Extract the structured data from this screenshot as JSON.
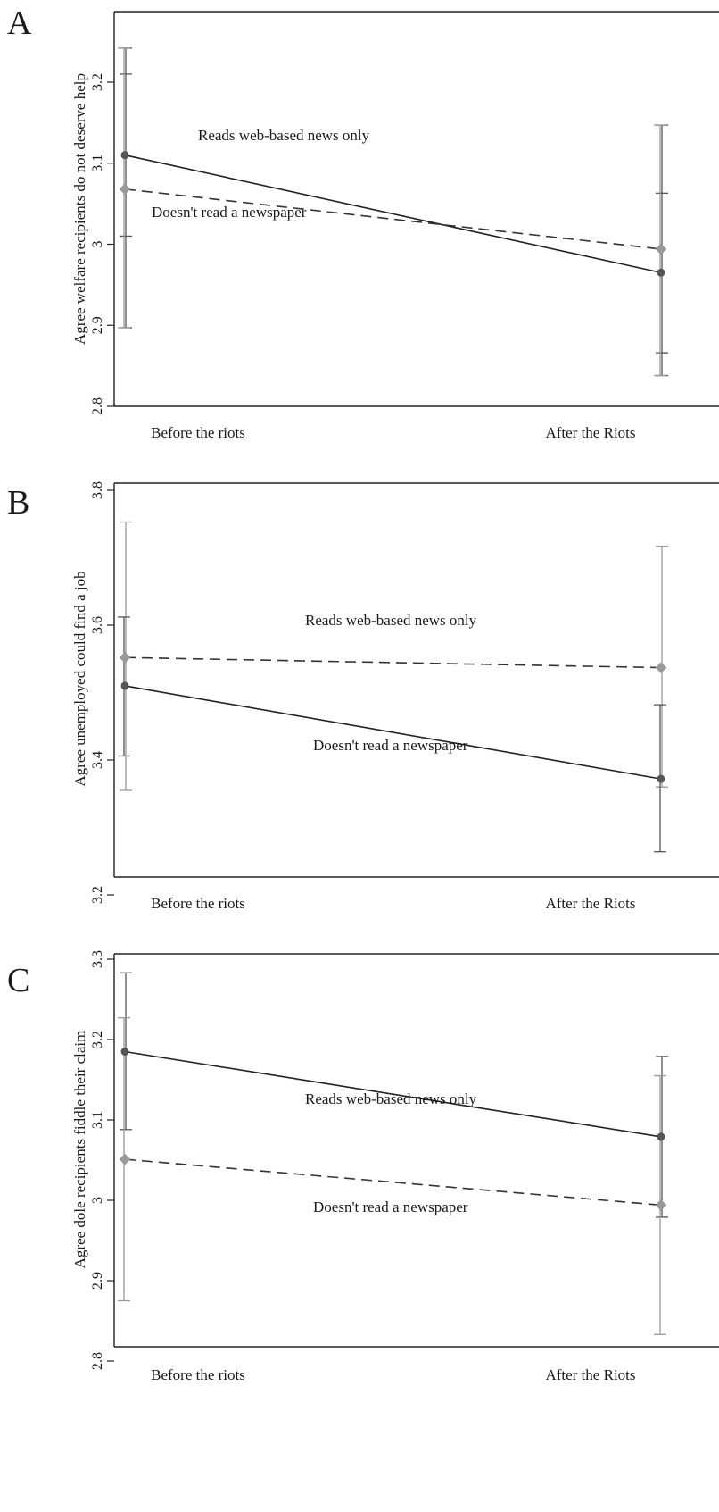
{
  "chart_data": [
    {
      "type": "line",
      "panel_label": "A",
      "categories": [
        "Before the riots",
        "After the Riots"
      ],
      "ylabel": "Agree welfare recipients do not deserve help",
      "ylim": [
        2.8,
        3.22
      ],
      "yticks": [
        2.8,
        2.9,
        3,
        3.1,
        3.2
      ],
      "ytick_labels": [
        "2.8",
        "2.9",
        "3",
        "3.1",
        "3.2"
      ],
      "series": [
        {
          "name": "Reads web-based news only",
          "style": "solid",
          "color": "#555555",
          "values": [
            3.11,
            2.965
          ],
          "ci_lower": [
            2.897,
            2.838
          ],
          "ci_upper": [
            3.242,
            3.147
          ],
          "inner_lower": [
            3.01,
            2.866
          ],
          "inner_upper": [
            3.21,
            3.063
          ]
        },
        {
          "name": "Doesn't read a newspaper",
          "style": "dashed",
          "color": "#999999",
          "values": [
            3.068,
            2.994
          ],
          "ci_lower": [
            2.897,
            2.838
          ],
          "ci_upper": [
            3.242,
            3.147
          ]
        }
      ],
      "annotations": [
        {
          "text": "Reads web-based news only"
        },
        {
          "text": "Doesn't read a newspaper"
        }
      ]
    },
    {
      "type": "line",
      "panel_label": "B",
      "categories": [
        "Before the riots",
        "After the Riots"
      ],
      "ylabel": "Agree unemployed could find a job",
      "ylim": [
        3.2,
        3.8
      ],
      "yticks": [
        3.2,
        3.4,
        3.6,
        3.8
      ],
      "ytick_labels": [
        "3.2",
        "3.4",
        "3.6",
        "3.8"
      ],
      "series": [
        {
          "name": "Reads web-based news only",
          "style": "dashed",
          "color": "#999999",
          "values": [
            3.552,
            3.537
          ],
          "ci_lower": [
            3.355,
            3.36
          ],
          "ci_upper": [
            3.753,
            3.717
          ]
        },
        {
          "name": "Doesn't read a newspaper",
          "style": "solid",
          "color": "#555555",
          "values": [
            3.51,
            3.372
          ],
          "ci_lower": [
            3.406,
            3.264
          ],
          "ci_upper": [
            3.612,
            3.482
          ]
        }
      ],
      "annotations": [
        {
          "text": "Reads web-based news only"
        },
        {
          "text": "Doesn't read a newspaper"
        }
      ]
    },
    {
      "type": "line",
      "panel_label": "C",
      "categories": [
        "Before the riots",
        "After the Riots"
      ],
      "ylabel": "Agree dole recipients fiddle their claim",
      "ylim": [
        2.8,
        3.3
      ],
      "yticks": [
        2.8,
        2.9,
        3,
        3.1,
        3.2,
        3.3
      ],
      "ytick_labels": [
        "2.8",
        "2.9",
        "3",
        "3.1",
        "3.2",
        "3.3"
      ],
      "series": [
        {
          "name": "Reads web-based news only",
          "style": "solid",
          "color": "#555555",
          "values": [
            3.185,
            3.079
          ],
          "ci_lower": [
            3.088,
            2.979
          ],
          "ci_upper": [
            3.283,
            3.179
          ]
        },
        {
          "name": "Doesn't read a newspaper",
          "style": "dashed",
          "color": "#999999",
          "values": [
            3.051,
            2.994
          ],
          "ci_lower": [
            2.875,
            2.833
          ],
          "ci_upper": [
            3.227,
            3.155
          ]
        }
      ],
      "annotations": [
        {
          "text": "Reads web-based news only"
        },
        {
          "text": "Doesn't read a newspaper"
        }
      ]
    }
  ]
}
